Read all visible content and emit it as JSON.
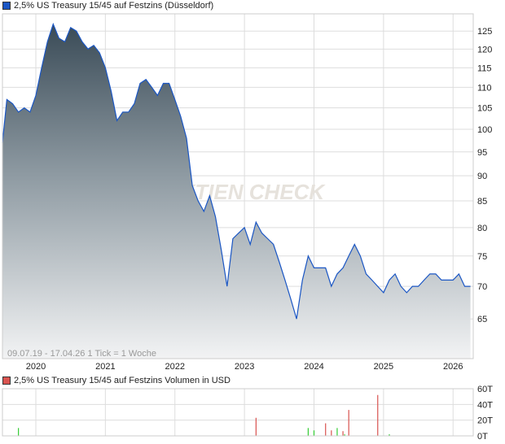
{
  "colors": {
    "price_line": "#1a56c4",
    "price_square": "#1a56c4",
    "volume_square": "#d9534f",
    "volume_up": "#33cc33",
    "volume_down": "#d9534f",
    "grid": "#dddddd"
  },
  "watermark": "AKTIEN CHECK",
  "chart_data": [
    {
      "type": "area",
      "title": "2,5% US Treasury 15/45 auf Festzins (Düsseldorf)",
      "note": "09.07.19 - 17.04.26   1 Tick = 1 Woche",
      "y_scale": "log",
      "ylim": [
        59.4,
        130
      ],
      "xlim": [
        "2019-07-09",
        "2026-04-17"
      ],
      "y_ticks": [
        125,
        120,
        115,
        110,
        105,
        100,
        95,
        90,
        85,
        80,
        75,
        70,
        65
      ],
      "x_ticks": [
        "2020",
        "2021",
        "2022",
        "2023",
        "2024",
        "2025",
        "2026"
      ],
      "grid": true,
      "x": [
        "2019-07",
        "2019-08",
        "2019-09",
        "2019-10",
        "2019-11",
        "2019-12",
        "2020-01",
        "2020-02",
        "2020-03",
        "2020-04",
        "2020-05",
        "2020-06",
        "2020-07",
        "2020-08",
        "2020-09",
        "2020-10",
        "2020-11",
        "2020-12",
        "2021-01",
        "2021-02",
        "2021-03",
        "2021-04",
        "2021-05",
        "2021-06",
        "2021-07",
        "2021-08",
        "2021-09",
        "2021-10",
        "2021-11",
        "2021-12",
        "2022-01",
        "2022-02",
        "2022-03",
        "2022-04",
        "2022-05",
        "2022-06",
        "2022-07",
        "2022-08",
        "2022-09",
        "2022-10",
        "2022-11",
        "2022-12",
        "2023-01",
        "2023-02",
        "2023-03",
        "2023-04",
        "2023-05",
        "2023-06",
        "2023-07",
        "2023-08",
        "2023-09",
        "2023-10",
        "2023-11",
        "2023-12",
        "2024-01",
        "2024-02",
        "2024-03",
        "2024-04",
        "2024-05",
        "2024-06",
        "2024-07",
        "2024-08",
        "2024-09",
        "2024-10",
        "2024-11",
        "2024-12",
        "2025-01",
        "2025-02",
        "2025-03",
        "2025-04",
        "2025-05",
        "2025-06",
        "2025-07",
        "2025-08",
        "2025-09",
        "2025-10",
        "2025-11",
        "2025-12",
        "2026-01",
        "2026-02",
        "2026-03",
        "2026-04"
      ],
      "values": [
        97,
        107,
        106,
        104,
        105,
        104,
        108,
        115,
        122,
        127,
        123,
        122,
        126,
        125,
        122,
        120,
        121,
        119,
        115,
        109,
        102,
        104,
        104,
        106,
        111,
        112,
        110,
        108,
        111,
        111,
        107,
        103,
        98,
        88,
        85,
        83,
        86,
        82,
        76,
        70,
        78,
        79,
        80,
        77,
        81,
        79,
        78,
        77,
        74,
        71,
        68,
        65,
        71,
        75,
        73,
        73,
        73,
        70,
        72,
        73,
        75,
        77,
        75,
        72,
        71,
        70,
        69,
        71,
        72,
        70,
        69,
        70,
        70,
        71,
        72,
        72,
        71,
        71,
        71,
        72,
        70,
        70
      ]
    },
    {
      "type": "bar",
      "title": "2,5% US Treasury 15/45 auf Festzins Volumen in USD",
      "ylim": [
        0,
        60
      ],
      "y_ticks": [
        "60T",
        "40T",
        "20T",
        "0T"
      ],
      "y_tick_values": [
        60,
        40,
        20,
        0
      ],
      "x": [
        "2019-10",
        "2023-03",
        "2023-12",
        "2024-01",
        "2024-03",
        "2024-04",
        "2024-05",
        "2024-06",
        "2024-06",
        "2024-07",
        "2024-12",
        "2025-02"
      ],
      "values": [
        10,
        23,
        10,
        7,
        16,
        7,
        10,
        6,
        2,
        33,
        52,
        2
      ],
      "direction": [
        "up",
        "down",
        "up",
        "up",
        "down",
        "down",
        "up",
        "down",
        "up",
        "down",
        "down",
        "up"
      ]
    }
  ]
}
